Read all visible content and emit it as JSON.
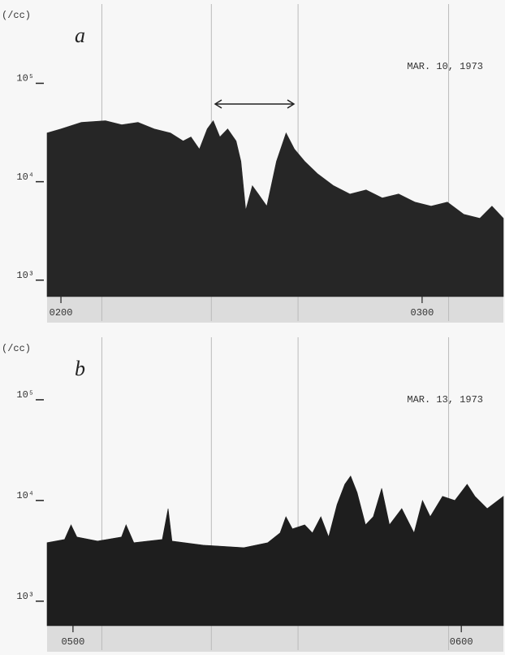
{
  "chart_data": [
    {
      "type": "area",
      "panel_label": "a",
      "annotation": "MAR. 10, 1973",
      "y_label": "(/cc)",
      "log_scale": true,
      "color": "#262626",
      "xlim": [
        117.7,
        193.5
      ],
      "xticks": [
        {
          "value": 120,
          "label": "0200"
        },
        {
          "value": 180,
          "label": "0300"
        }
      ],
      "ylim": [
        680,
        480000
      ],
      "yticks": [
        {
          "value": 1000,
          "label": "10³"
        },
        {
          "value": 10000,
          "label": "10⁴"
        },
        {
          "value": 100000,
          "label": "10⁵"
        }
      ],
      "x": [
        117.7,
        120,
        123.4,
        127.4,
        130.1,
        132.8,
        135.5,
        138.2,
        140.3,
        141.6,
        143,
        144.3,
        145.3,
        146.4,
        147.7,
        149.1,
        149.9,
        150.7,
        151.8,
        152.8,
        154.2,
        155.8,
        157.4,
        158.8,
        160.5,
        162.6,
        165.3,
        168,
        170.7,
        173.4,
        176.1,
        178.8,
        181.5,
        184.2,
        186.9,
        189.6,
        191.6,
        193.5
      ],
      "values": [
        31300,
        34400,
        40100,
        41700,
        37900,
        40100,
        34400,
        31300,
        25900,
        28500,
        21400,
        34400,
        41700,
        28500,
        34400,
        25900,
        16100,
        5140,
        9100,
        7500,
        5650,
        16100,
        31300,
        21400,
        16100,
        12100,
        9100,
        7500,
        8260,
        6840,
        7500,
        6210,
        5650,
        6210,
        4670,
        4250,
        5650,
        4250
      ]
    },
    {
      "type": "area",
      "panel_label": "b",
      "annotation": "MAR. 13, 1973",
      "y_label": "(/cc)",
      "log_scale": true,
      "color": "#1e1e1e",
      "xlim": [
        296,
        366.5
      ],
      "xticks": [
        {
          "value": 300,
          "label": "0500"
        },
        {
          "value": 360,
          "label": "0600"
        }
      ],
      "ylim": [
        570,
        316000
      ],
      "yticks": [
        {
          "value": 1000,
          "label": "10³"
        },
        {
          "value": 10000,
          "label": "10⁴"
        },
        {
          "value": 100000,
          "label": "10⁵"
        }
      ],
      "x": [
        296,
        298.7,
        299.7,
        300.6,
        303.8,
        307.5,
        308.2,
        309.4,
        313.8,
        314.7,
        315.3,
        320.1,
        326.4,
        330.1,
        332,
        332.9,
        333.9,
        335.8,
        337,
        338.3,
        339.5,
        340.8,
        342,
        342.9,
        343.9,
        345.2,
        346.4,
        347.7,
        348.9,
        350.8,
        352.7,
        354,
        355.2,
        357.1,
        359,
        360.9,
        362.1,
        364,
        366.5
      ],
      "values": [
        3810,
        4100,
        5730,
        4340,
        3950,
        4340,
        5730,
        3810,
        4100,
        8300,
        3950,
        3600,
        3400,
        3810,
        4760,
        6900,
        5220,
        5730,
        4760,
        6900,
        4340,
        9110,
        14500,
        17500,
        12000,
        5730,
        6900,
        13200,
        5730,
        8300,
        4760,
        10000,
        6900,
        11000,
        10000,
        14500,
        11000,
        8300,
        11000
      ]
    }
  ]
}
